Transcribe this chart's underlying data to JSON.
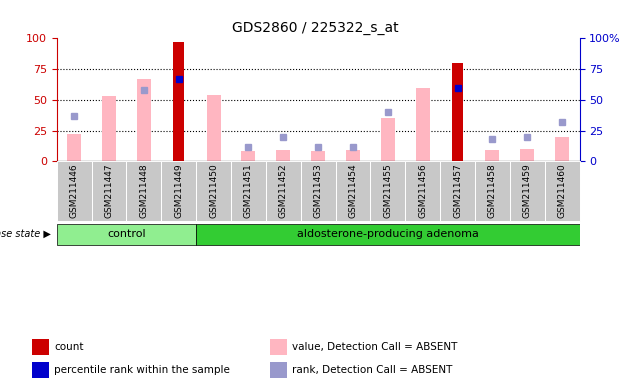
{
  "title": "GDS2860 / 225322_s_at",
  "samples": [
    "GSM211446",
    "GSM211447",
    "GSM211448",
    "GSM211449",
    "GSM211450",
    "GSM211451",
    "GSM211452",
    "GSM211453",
    "GSM211454",
    "GSM211455",
    "GSM211456",
    "GSM211457",
    "GSM211458",
    "GSM211459",
    "GSM211460"
  ],
  "groups": [
    {
      "label": "control",
      "start": 0,
      "end": 4,
      "color": "#90EE90"
    },
    {
      "label": "aldosterone-producing adenoma",
      "start": 4,
      "end": 15,
      "color": "#33CC33"
    }
  ],
  "count_bars": [
    0,
    0,
    0,
    97,
    0,
    0,
    0,
    0,
    0,
    0,
    0,
    80,
    0,
    0,
    0
  ],
  "percentile_rank": [
    null,
    null,
    null,
    67,
    null,
    null,
    null,
    null,
    null,
    null,
    null,
    60,
    null,
    null,
    null
  ],
  "value_absent": [
    22,
    53,
    67,
    null,
    54,
    8,
    9,
    8,
    9,
    35,
    60,
    null,
    9,
    10,
    20
  ],
  "rank_absent": [
    37,
    null,
    58,
    null,
    null,
    12,
    20,
    12,
    12,
    40,
    null,
    null,
    18,
    20,
    32
  ],
  "ylim_left": [
    0,
    100
  ],
  "ylim_right": [
    0,
    100
  ],
  "bar_color_count": "#CC0000",
  "bar_color_value_absent": "#FFB6C1",
  "dot_color_percentile": "#0000CC",
  "dot_color_rank_absent": "#9999CC",
  "left_axis_color": "#CC0000",
  "right_axis_color": "#0000CC",
  "legend_items": [
    {
      "color": "#CC0000",
      "label": "count"
    },
    {
      "color": "#0000CC",
      "label": "percentile rank within the sample"
    },
    {
      "color": "#FFB6C1",
      "label": "value, Detection Call = ABSENT"
    },
    {
      "color": "#9999CC",
      "label": "rank, Detection Call = ABSENT"
    }
  ],
  "disease_state_label": "disease state"
}
